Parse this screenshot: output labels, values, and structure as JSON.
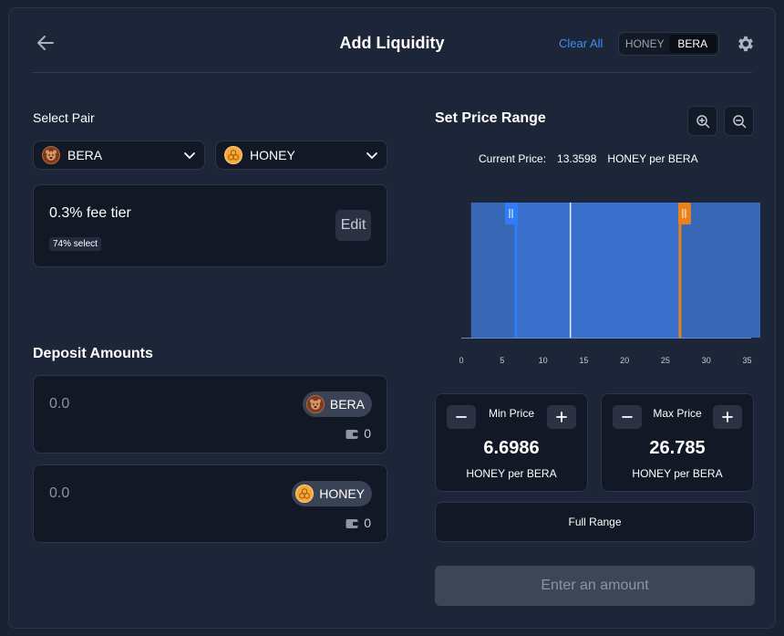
{
  "header": {
    "title": "Add Liquidity",
    "clear_all": "Clear All",
    "toggle": {
      "options": [
        "HONEY",
        "BERA"
      ],
      "active": "BERA"
    }
  },
  "select_pair": {
    "label": "Select Pair",
    "token_a": {
      "symbol": "BERA",
      "icon": "bera-icon"
    },
    "token_b": {
      "symbol": "HONEY",
      "icon": "honey-icon"
    }
  },
  "fee": {
    "tier": "0.3% fee tier",
    "select_pct": "74% select",
    "edit_label": "Edit"
  },
  "deposit": {
    "heading": "Deposit Amounts",
    "inputs": [
      {
        "placeholder": "0.0",
        "token": "BERA",
        "balance": "0"
      },
      {
        "placeholder": "0.0",
        "token": "HONEY",
        "balance": "0"
      }
    ]
  },
  "price_range": {
    "heading": "Set Price Range",
    "current_price_label": "Current Price:",
    "current_price_value": "13.3598",
    "current_price_unit": "HONEY per BERA",
    "min": {
      "label": "Min Price",
      "value": "6.6986",
      "unit": "HONEY per BERA"
    },
    "max": {
      "label": "Max Price",
      "value": "26.785",
      "unit": "HONEY per BERA"
    },
    "full_range": "Full Range"
  },
  "chart_data": {
    "type": "area",
    "x_ticks": [
      0,
      5,
      10,
      15,
      20,
      25,
      30,
      35
    ],
    "xlim": [
      0,
      35.5
    ],
    "liquidity_start": 1.2,
    "current_price": 13.3598,
    "min_price": 6.6986,
    "max_price": 26.785,
    "colors": {
      "fill": "#3867b6",
      "selected_fill": "#3a6fcc",
      "min_handle": "#2f7ef5",
      "max_handle": "#e9821a",
      "current_line": "#e8ecf5"
    }
  },
  "submit": {
    "label": "Enter an amount"
  },
  "colors": {
    "accent": "#3d8ef7",
    "background": "#1d2638",
    "card": "#121826"
  }
}
